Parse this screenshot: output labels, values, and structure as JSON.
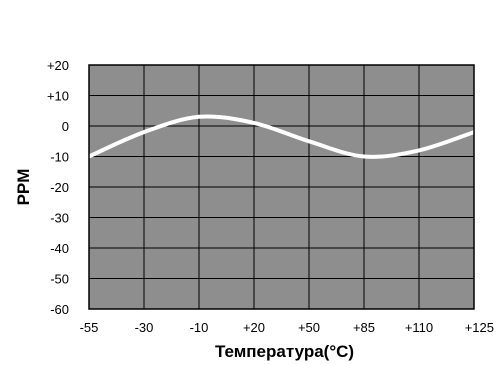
{
  "chart_data": {
    "type": "line",
    "title": "",
    "xlabel": "Температура(°C)",
    "ylabel": "PPM",
    "x_ticks": [
      "-55",
      "-30",
      "-10",
      "+20",
      "+50",
      "+85",
      "+110",
      "+125"
    ],
    "y_ticks": [
      "+20",
      "+10",
      "0",
      "-10",
      "-20",
      "-30",
      "-40",
      "-50",
      "-60"
    ],
    "ylim": [
      -60,
      20
    ],
    "grid": true,
    "legend": "none",
    "colors": {
      "plot_background": "#8e8e8e",
      "grid": "#000000",
      "curve": "#ffffff"
    },
    "series": [
      {
        "x": [
          "-55",
          "-30",
          "-10",
          "+20",
          "+50",
          "+85",
          "+110",
          "+125"
        ],
        "values": [
          -10,
          -2,
          3,
          1,
          -5,
          -10,
          -8,
          -2
        ]
      }
    ]
  }
}
